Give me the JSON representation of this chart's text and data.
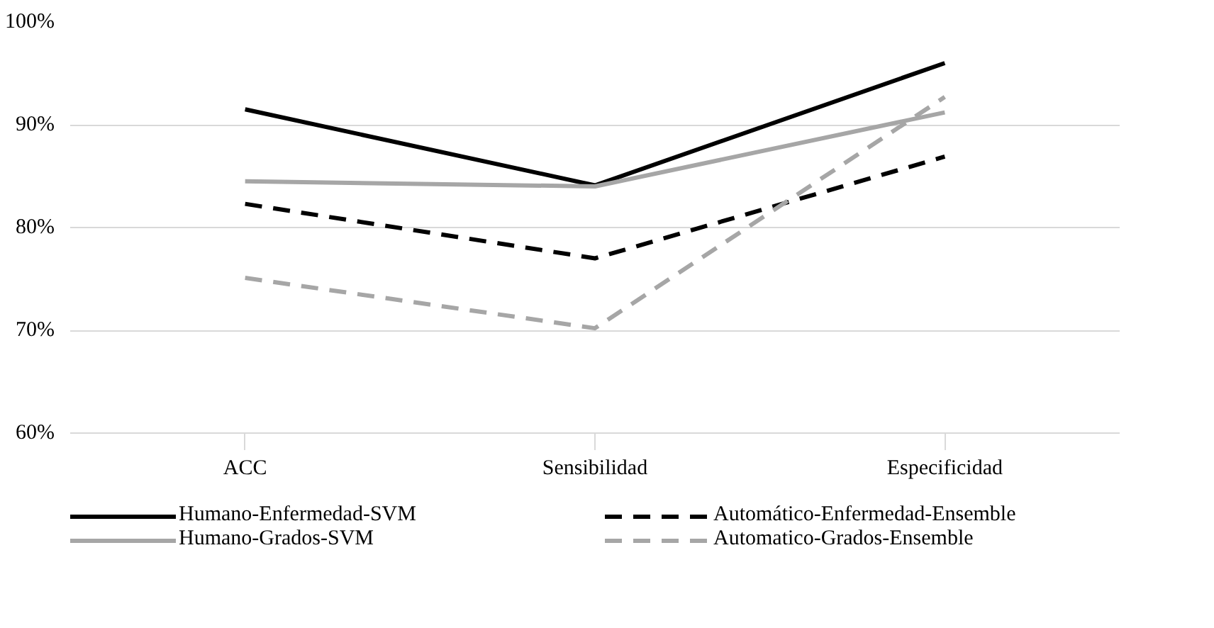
{
  "chart_data": {
    "type": "line",
    "categories": [
      "ACC",
      "Sensibilidad",
      "Especificidad"
    ],
    "series": [
      {
        "name": "Humano-Enfermedad-SVM",
        "color": "#000000",
        "values": [
          91.5,
          84.1,
          96
        ],
        "line_style": "solid"
      },
      {
        "name": "Humano-Grados-SVM",
        "color": "#a6a6a6",
        "values": [
          84.5,
          84,
          91.2
        ],
        "line_style": "solid"
      },
      {
        "name": "Automático-Enfermedad-Ensemble",
        "color": "#000000",
        "values": [
          82.3,
          77,
          86.9
        ],
        "line_style": "dashed"
      },
      {
        "name": "Automatico-Grados-Ensemble",
        "color": "#a6a6a6",
        "values": [
          75.1,
          70.2,
          92.7
        ],
        "line_style": "dashed"
      }
    ],
    "ylim": [
      60,
      100
    ],
    "yticks": [
      {
        "value": 60,
        "label": "60%"
      },
      {
        "value": 70,
        "label": "70%"
      },
      {
        "value": 80,
        "label": "80%"
      },
      {
        "value": 90,
        "label": "90%"
      },
      {
        "value": 100,
        "label": "100%"
      }
    ],
    "grid": "y",
    "legend": "bottom",
    "marker": "none"
  }
}
